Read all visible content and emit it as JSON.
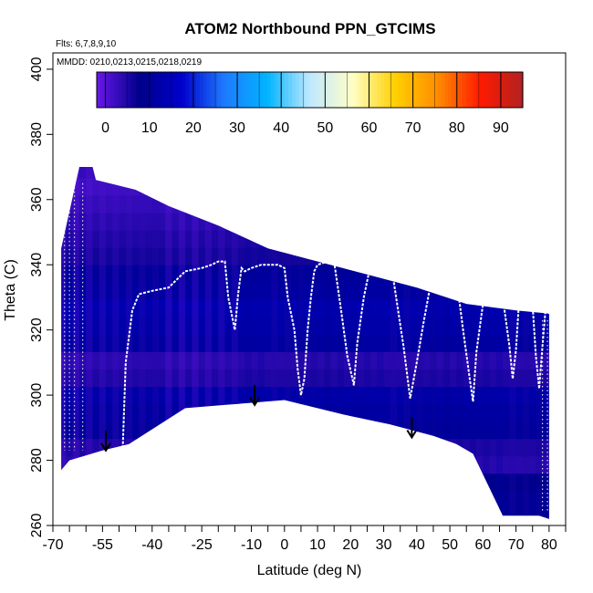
{
  "chart_data": {
    "type": "heatmap",
    "title": "ATOM2 Northbound PPN_GTCIMS",
    "flights_label": "Flts: 6,7,8,9,10",
    "mmdd_label": "MMDD: 0210,0213,0215,0218,0219",
    "xlabel": "Latitude (deg N)",
    "ylabel": "Theta (C)",
    "xlim": [
      -70,
      85
    ],
    "ylim": [
      260,
      405
    ],
    "x_ticks": [
      -70,
      -55,
      -40,
      -25,
      -10,
      0,
      10,
      20,
      30,
      40,
      50,
      60,
      70,
      80
    ],
    "x_minor_ticks": [
      -65,
      -60,
      -50,
      -45,
      -35,
      -30,
      -20,
      -15,
      -5,
      5,
      15,
      25,
      35,
      45,
      55,
      65,
      75,
      85
    ],
    "y_ticks": [
      260,
      280,
      300,
      320,
      340,
      360,
      380,
      400
    ],
    "colorbar": {
      "range": [
        -2,
        95
      ],
      "ticks": [
        0,
        10,
        20,
        30,
        40,
        50,
        60,
        70,
        80,
        90
      ],
      "colors": [
        "#6a17e8",
        "#00008b",
        "#0000cd",
        "#1e7bff",
        "#00b4ff",
        "#bfe8ff",
        "#ffffc8",
        "#ffd000",
        "#ff8c00",
        "#ff1a00",
        "#b22222"
      ]
    },
    "data_top_boundary": [
      [
        -67.5,
        345
      ],
      [
        -62,
        370
      ],
      [
        -58,
        370
      ],
      [
        -57,
        366
      ],
      [
        -45,
        363
      ],
      [
        -35,
        358
      ],
      [
        -20,
        352
      ],
      [
        -5,
        345
      ],
      [
        10,
        341
      ],
      [
        25,
        337
      ],
      [
        40,
        333
      ],
      [
        55,
        328
      ],
      [
        70,
        326
      ],
      [
        80,
        325
      ]
    ],
    "data_bottom_boundary": [
      [
        -67.5,
        277
      ],
      [
        -65,
        280
      ],
      [
        -55,
        283
      ],
      [
        -47,
        285
      ],
      [
        -30,
        296
      ],
      [
        0,
        298.5
      ],
      [
        18,
        294
      ],
      [
        32,
        291
      ],
      [
        45,
        287.5
      ],
      [
        52,
        285
      ],
      [
        57,
        282
      ],
      [
        66,
        263
      ],
      [
        77,
        263
      ],
      [
        80,
        262
      ]
    ],
    "field_value_range": [
      0,
      15
    ],
    "field_values": [
      9,
      9,
      8,
      4,
      5,
      10,
      11,
      12,
      5,
      4,
      11,
      12,
      13,
      11,
      10,
      6,
      5,
      4,
      3,
      2,
      3
    ],
    "flight_track_white": [
      [
        -49,
        280
      ],
      [
        -48,
        310
      ],
      [
        -46,
        326
      ],
      [
        -44,
        331
      ],
      [
        -40,
        332
      ],
      [
        -35,
        333
      ],
      [
        -30,
        338
      ],
      [
        -25,
        339
      ],
      [
        -22,
        340
      ],
      [
        -20,
        341
      ],
      [
        -18,
        341
      ],
      [
        -17,
        330
      ],
      [
        -15,
        320
      ],
      [
        -14,
        331
      ],
      [
        -13,
        339
      ],
      [
        -12,
        338
      ],
      [
        -10,
        339
      ],
      [
        -7,
        340
      ],
      [
        -4,
        340
      ],
      [
        -2,
        340
      ],
      [
        0,
        339
      ],
      [
        1,
        330
      ],
      [
        3,
        320
      ],
      [
        4,
        308
      ],
      [
        5,
        300
      ],
      [
        6,
        305
      ],
      [
        7,
        320
      ],
      [
        8,
        330
      ],
      [
        9,
        338
      ],
      [
        10,
        340
      ],
      [
        13,
        341
      ],
      [
        15,
        341
      ],
      [
        17,
        327
      ],
      [
        19,
        312
      ],
      [
        21,
        303
      ],
      [
        22,
        316
      ],
      [
        24,
        330
      ],
      [
        26,
        340
      ],
      [
        28,
        342
      ],
      [
        31,
        342
      ],
      [
        33,
        335
      ],
      [
        36,
        315
      ],
      [
        38,
        299
      ],
      [
        40,
        310
      ],
      [
        42,
        322
      ],
      [
        44,
        333
      ],
      [
        46,
        340
      ],
      [
        47,
        342
      ],
      [
        49,
        343
      ],
      [
        51,
        343
      ],
      [
        52,
        336
      ],
      [
        54,
        320
      ],
      [
        56,
        305
      ],
      [
        57,
        298
      ],
      [
        58,
        313
      ],
      [
        60,
        328
      ],
      [
        61,
        341
      ],
      [
        63,
        343
      ],
      [
        65,
        342
      ],
      [
        66,
        330
      ],
      [
        68,
        315
      ],
      [
        69,
        305
      ],
      [
        70,
        314
      ],
      [
        71,
        330
      ],
      [
        72,
        340
      ],
      [
        73,
        341
      ],
      [
        74,
        341
      ],
      [
        75,
        328
      ],
      [
        76,
        312
      ],
      [
        77,
        302
      ],
      [
        78,
        315
      ],
      [
        79,
        327
      ],
      [
        80,
        325
      ]
    ],
    "markers": [
      {
        "type": "arrow-down",
        "x": -54,
        "y": 283
      },
      {
        "type": "arrow-down",
        "x": -9,
        "y": 297
      },
      {
        "type": "arrow-down",
        "x": 38.5,
        "y": 287
      }
    ]
  }
}
